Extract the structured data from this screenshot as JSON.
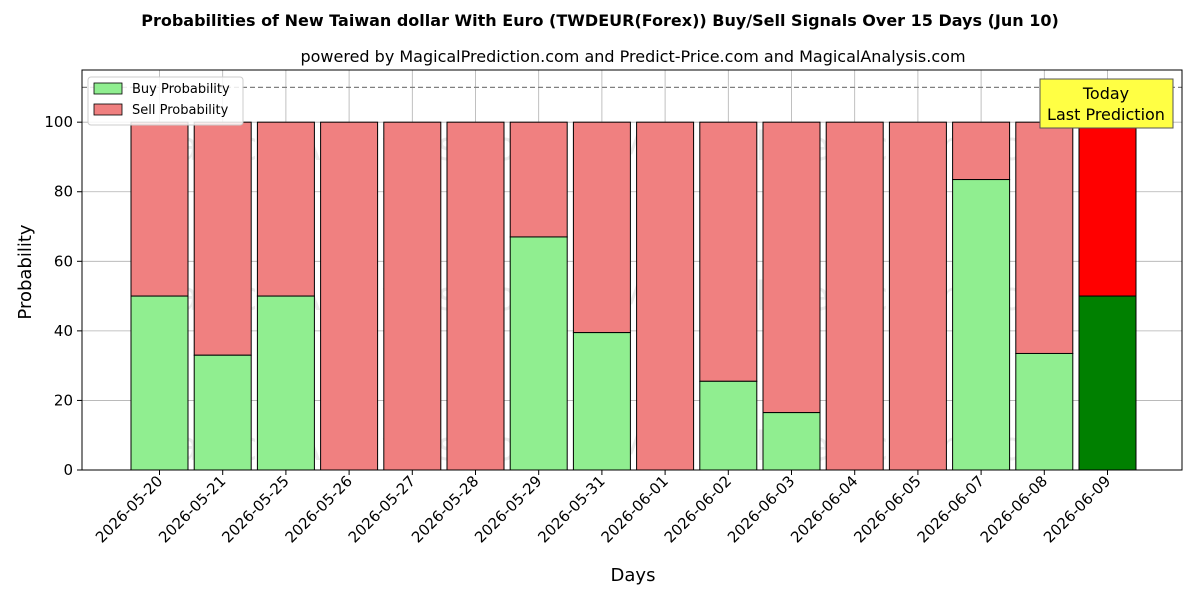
{
  "chart_data": {
    "type": "bar",
    "stacked": true,
    "title": "Probabilities of New Taiwan dollar With Euro (TWDEUR(Forex)) Buy/Sell Signals Over 15 Days (Jun 10)",
    "subtitle": "powered by MagicalPrediction.com and Predict-Price.com and MagicalAnalysis.com",
    "xlabel": "Days",
    "ylabel": "Probability",
    "ylim": [
      0,
      115
    ],
    "yticks": [
      0,
      20,
      40,
      60,
      80,
      100
    ],
    "grid": true,
    "reference_line": 110,
    "legend_position": "top-left",
    "categories": [
      "2026-05-20",
      "2026-05-21",
      "2026-05-25",
      "2026-05-26",
      "2026-05-27",
      "2026-05-28",
      "2026-05-29",
      "2026-05-31",
      "2026-06-01",
      "2026-06-02",
      "2026-06-03",
      "2026-06-04",
      "2026-06-05",
      "2026-06-07",
      "2026-06-08",
      "2026-06-09"
    ],
    "series": [
      {
        "name": "Buy Probability",
        "color": "#90ee90",
        "highlight_color": "#008000",
        "values": [
          50,
          33,
          50,
          0,
          0,
          0,
          67,
          39.5,
          0,
          25.5,
          16.5,
          0,
          0,
          83.5,
          33.5,
          50
        ]
      },
      {
        "name": "Sell Probability",
        "color": "#f08080",
        "highlight_color": "#ff0000",
        "values": [
          50,
          67,
          50,
          100,
          100,
          100,
          33,
          60.5,
          100,
          74.5,
          83.5,
          100,
          100,
          16.5,
          66.5,
          50
        ]
      }
    ],
    "highlight_index": 15,
    "annotation": {
      "line1": "Today",
      "line2": "Last Prediction",
      "background": "#ffff44"
    },
    "watermarks": [
      "MagicalAnalysis.com",
      "MagicalPrediction.com"
    ]
  }
}
